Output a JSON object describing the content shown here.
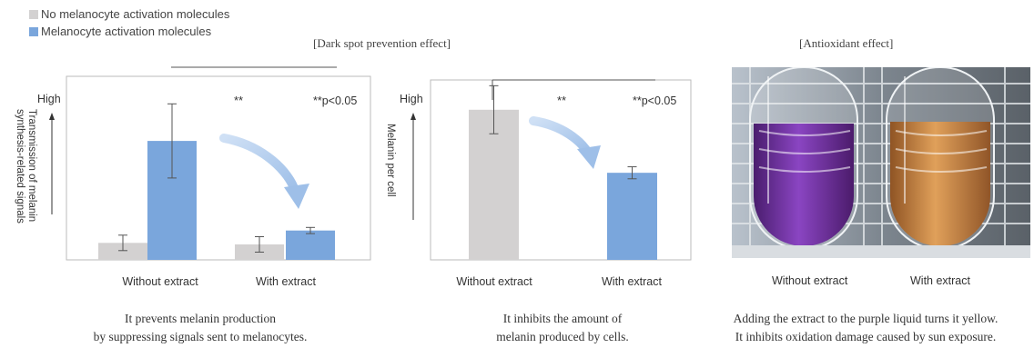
{
  "legend": [
    {
      "label": "No melanocyte activation molecules",
      "color": "#d3d1d1"
    },
    {
      "label": "Melanocyte activation molecules",
      "color": "#7aa6dc"
    }
  ],
  "sections": {
    "dark_spot_title": "[Dark spot prevention effect]",
    "antioxidant_title": "[Antioxidant effect]"
  },
  "chart_data": [
    {
      "type": "bar",
      "categories": [
        "Without extract",
        "With extract"
      ],
      "series": [
        {
          "name": "No melanocyte activation molecules",
          "values": [
            11,
            10
          ],
          "errors": [
            5,
            5
          ]
        },
        {
          "name": "Melanocyte activation molecules",
          "values": [
            77,
            19
          ],
          "errors": [
            24,
            2
          ]
        }
      ],
      "ylabel_lines": [
        "Transmission of melanin",
        "synthesis-related signals"
      ],
      "y_high_label": "High",
      "significance_label": "**",
      "pvalue_note": "**p<0.05",
      "ylim": [
        0,
        100
      ],
      "grid": false,
      "legend": "top-left"
    },
    {
      "type": "bar",
      "categories": [
        "Without extract",
        "With extract"
      ],
      "series": [
        {
          "name": "No melanocyte activation molecules",
          "values": [
            100,
            null
          ],
          "errors": [
            16,
            null
          ]
        },
        {
          "name": "Melanocyte activation molecules",
          "values": [
            null,
            58
          ],
          "errors": [
            null,
            4
          ]
        }
      ],
      "ylabel": "Melanin per cell",
      "y_high_label": "High",
      "significance_label": "**",
      "pvalue_note": "**p<0.05",
      "ylim": [
        0,
        115
      ],
      "grid": false
    }
  ],
  "photo": {
    "left_label": "Without extract",
    "right_label": "With extract",
    "left_liquid_color": "#6b2c9a",
    "right_liquid_color": "#c9853e"
  },
  "captions": {
    "chart1": [
      "It prevents melanin production",
      "by suppressing signals sent to melanocytes."
    ],
    "chart2": [
      "It inhibits the amount of",
      "melanin produced by cells."
    ],
    "photo": [
      "Adding the extract to the purple liquid turns it yellow.",
      "It inhibits oxidation damage caused by sun exposure."
    ]
  }
}
